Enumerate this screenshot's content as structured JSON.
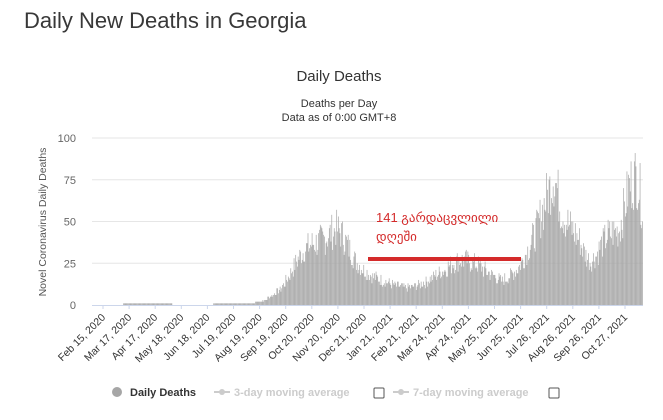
{
  "page": {
    "title": "Daily New Deaths in Georgia"
  },
  "colors": {
    "bar": "#a6a6a6",
    "grid": "#e6e6e6",
    "annotation": "#d42a2a",
    "inactive": "#cccccc"
  },
  "chart_data": {
    "type": "bar",
    "title": "Daily Deaths",
    "subtitle_line1": "Deaths per Day",
    "subtitle_line2": "Data as of 0:00 GMT+8",
    "ylabel": "Novel Coronavirus Daily Deaths",
    "xlabel": "",
    "ylim": [
      0,
      100
    ],
    "yticks": [
      "0",
      "25",
      "50",
      "75",
      "100"
    ],
    "xticks": [
      "Feb 15, 2020",
      "Mar 17, 2020",
      "Apr 17, 2020",
      "May 18, 2020",
      "Jun 18, 2020",
      "Jul 19, 2020",
      "Aug 19, 2020",
      "Sep 19, 2020",
      "Oct 20, 2020",
      "Nov 20, 2020",
      "Dec 21, 2020",
      "Jan 21, 2021",
      "Feb 21, 2021",
      "Mar 24, 2021",
      "Apr 24, 2021",
      "May 25, 2021",
      "Jun 25, 2021",
      "Jul 26, 2021",
      "Aug 26, 2021",
      "Sep 26, 2021",
      "Oct 27, 2021"
    ],
    "series_name": "Daily Deaths",
    "anchors": [
      [
        0,
        0
      ],
      [
        30,
        0
      ],
      [
        45,
        1
      ],
      [
        60,
        1
      ],
      [
        75,
        1
      ],
      [
        120,
        0
      ],
      [
        175,
        1
      ],
      [
        195,
        1
      ],
      [
        210,
        3
      ],
      [
        220,
        6
      ],
      [
        230,
        10
      ],
      [
        240,
        18
      ],
      [
        250,
        28
      ],
      [
        260,
        35
      ],
      [
        270,
        38
      ],
      [
        280,
        40
      ],
      [
        290,
        44
      ],
      [
        298,
        47
      ],
      [
        305,
        43
      ],
      [
        312,
        36
      ],
      [
        320,
        28
      ],
      [
        330,
        22
      ],
      [
        340,
        18
      ],
      [
        350,
        16
      ],
      [
        360,
        14
      ],
      [
        370,
        12
      ],
      [
        380,
        11
      ],
      [
        390,
        11
      ],
      [
        400,
        13
      ],
      [
        410,
        15
      ],
      [
        420,
        19
      ],
      [
        430,
        22
      ],
      [
        440,
        26
      ],
      [
        450,
        28
      ],
      [
        460,
        27
      ],
      [
        470,
        25
      ],
      [
        480,
        21
      ],
      [
        490,
        18
      ],
      [
        500,
        15
      ],
      [
        510,
        18
      ],
      [
        520,
        23
      ],
      [
        530,
        33
      ],
      [
        540,
        44
      ],
      [
        550,
        60
      ],
      [
        555,
        68
      ],
      [
        558,
        72
      ],
      [
        562,
        80
      ],
      [
        566,
        74
      ],
      [
        570,
        62
      ],
      [
        578,
        52
      ],
      [
        586,
        46
      ],
      [
        594,
        40
      ],
      [
        602,
        30
      ],
      [
        608,
        27
      ],
      [
        614,
        30
      ],
      [
        620,
        36
      ],
      [
        628,
        43
      ],
      [
        636,
        45
      ],
      [
        642,
        46
      ],
      [
        648,
        58
      ],
      [
        654,
        72
      ],
      [
        660,
        78
      ],
      [
        664,
        80
      ],
      [
        668,
        70
      ],
      [
        671,
        60
      ]
    ],
    "annotation": {
      "line1": "141 გარდაცვლილი",
      "line2": "დღეში"
    },
    "legend": [
      {
        "name": "Daily Deaths",
        "active": true
      },
      {
        "name": "3-day moving average",
        "active": false
      },
      {
        "name": "7-day moving average",
        "active": false
      }
    ]
  }
}
